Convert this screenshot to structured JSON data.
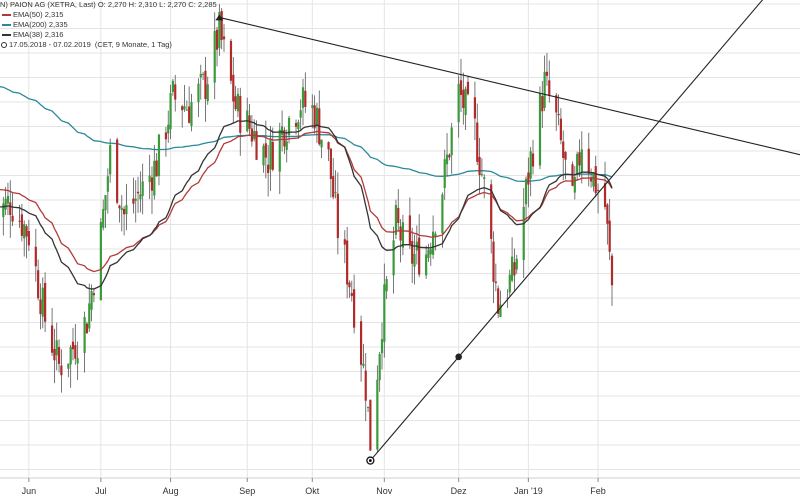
{
  "chart_data": {
    "type": "candlestick",
    "title": "PAION AG (XETRA, Last)",
    "header_prefix": "N)",
    "ohlc": {
      "O": "2,270",
      "H": "2,310",
      "L": "2,270",
      "C": "2,285"
    },
    "header_line": "O: 2,270  H: 2,310  L: 2,270  C: 2,285",
    "indicators": [
      {
        "label": "EMA(50)",
        "value": "2,315",
        "color": "#b23a3a"
      },
      {
        "label": "EMA(200)",
        "value": "2,335",
        "color": "#2a8a9a"
      },
      {
        "label": "EMA(38)",
        "value": "2,316",
        "color": "#333333"
      }
    ],
    "period": "17.05.2018 - 07.02.2019",
    "period_note": "(CET, 9 Monate, 1 Tag)",
    "x_tick_labels": [
      "Jun",
      "Jul",
      "Aug",
      "Sep",
      "Okt",
      "Nov",
      "Dez",
      "Jan '19",
      "Feb"
    ],
    "x_tick_dates": [
      "2018-06-01",
      "2018-07-02",
      "2018-08-01",
      "2018-09-03",
      "2018-10-01",
      "2018-11-01",
      "2018-12-03",
      "2019-01-02",
      "2019-02-01"
    ],
    "x_range": [
      "2018-05-17",
      "2019-02-07"
    ],
    "y_range": [
      1.9,
      2.88
    ],
    "grid": true,
    "trend_lines": [
      {
        "name": "upper-resistance",
        "from": {
          "date": "2018-08-22",
          "price": 2.86
        },
        "to": "right-edge"
      },
      {
        "name": "lower-support",
        "from": {
          "date": "2018-10-26",
          "price": 1.92
        },
        "anchor_point": {
          "date": "2018-12-03",
          "price": 2.14
        },
        "to": "right-edge"
      }
    ],
    "colors": {
      "up": "#3a9a3a",
      "down": "#b02a2a",
      "ema50": "#b23a3a",
      "ema200": "#2a8a9a",
      "ema38": "#333333",
      "grid": "#e4e4e4"
    }
  }
}
